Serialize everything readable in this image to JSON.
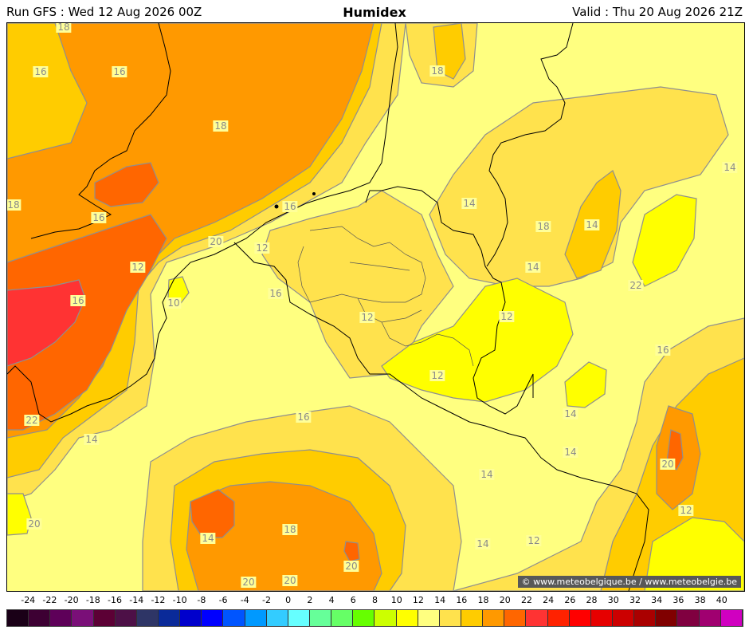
{
  "header": {
    "run": "Run GFS : Wed 12 Aug 2026 00Z",
    "title": "Humidex",
    "valid": "Valid : Thu 20 Aug 2026 21Z"
  },
  "credit": "© www.meteobelgique.be / www.meteobelgie.be",
  "colors": {
    "level_10_12": "#ffff00",
    "level_12_14": "#ffff80",
    "level_14_16": "#ffe24d",
    "level_16_18": "#ffcc00",
    "level_18_20": "#ff9900",
    "level_20_22": "#ff6600",
    "level_22_24": "#ff3333",
    "contour_line": "#8f8f8f",
    "border_line": "#000000"
  },
  "contour_labels": [
    "18",
    "16",
    "16",
    "18",
    "18",
    "18",
    "14",
    "14",
    "16",
    "16",
    "14",
    "18",
    "12",
    "20",
    "12",
    "14",
    "22",
    "16",
    "16",
    "10",
    "12",
    "12",
    "16",
    "12",
    "22",
    "14",
    "16",
    "14",
    "14",
    "20",
    "14",
    "12",
    "20",
    "18",
    "14",
    "14",
    "12",
    "20",
    "20",
    "20"
  ],
  "legend": {
    "ticks": [
      "-24",
      "-22",
      "-20",
      "-18",
      "-16",
      "-14",
      "-12",
      "-10",
      "-8",
      "-6",
      "-4",
      "-2",
      "0",
      "2",
      "4",
      "6",
      "8",
      "10",
      "12",
      "14",
      "16",
      "18",
      "20",
      "22",
      "24",
      "26",
      "28",
      "30",
      "32",
      "34",
      "36",
      "38",
      "40"
    ],
    "colors": [
      "#1a0017",
      "#3d0033",
      "#5e0059",
      "#7a0f78",
      "#5c0035",
      "#4d1047",
      "#2e3566",
      "#0a2a99",
      "#0000cc",
      "#0000ff",
      "#0055ff",
      "#0099ff",
      "#33ccff",
      "#66ffff",
      "#66ff99",
      "#66ff66",
      "#66ff00",
      "#ccff00",
      "#ffff00",
      "#ffff80",
      "#ffe24d",
      "#ffcc00",
      "#ff9900",
      "#ff6600",
      "#ff3333",
      "#ff2200",
      "#ff0000",
      "#e60000",
      "#cc0000",
      "#aa0000",
      "#800000",
      "#800040",
      "#a00070",
      "#d000c0"
    ]
  }
}
